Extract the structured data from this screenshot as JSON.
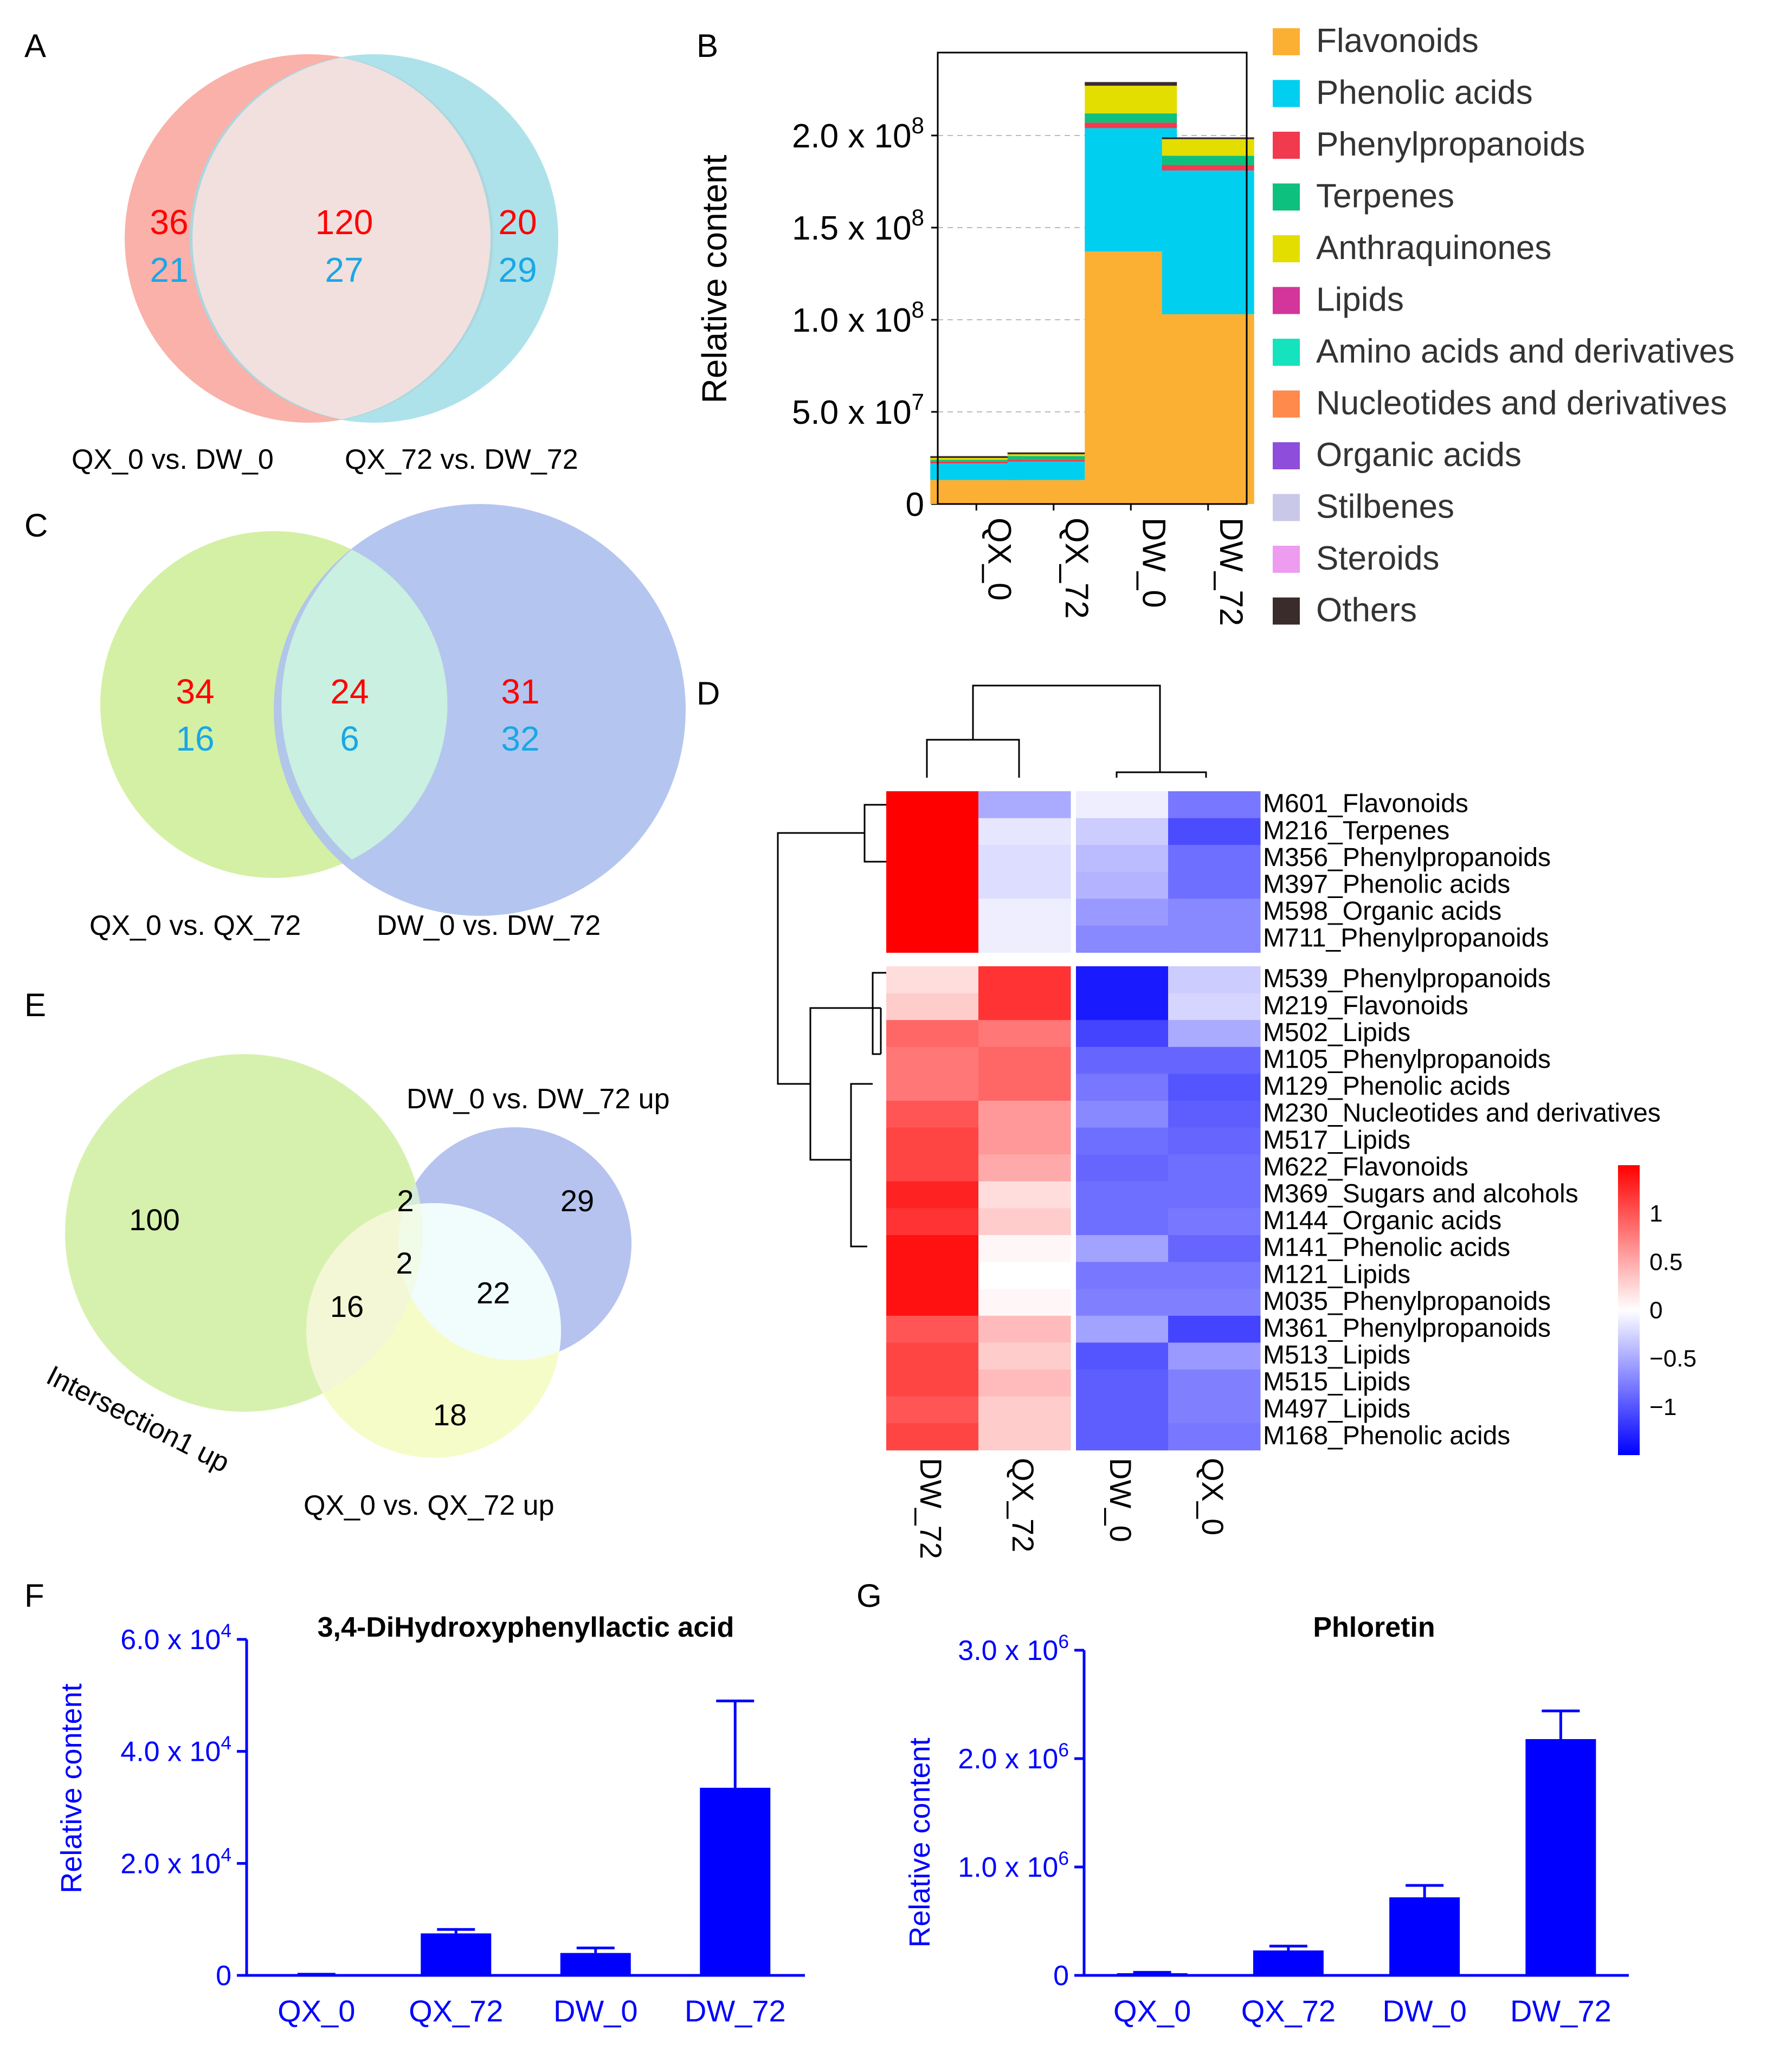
{
  "panels": {
    "A": {
      "letter": "A",
      "left_label": "QX_0 vs. DW_0",
      "right_label": "QX_72 vs. DW_72",
      "left_red": "36",
      "left_blue": "21",
      "mid_red": "120",
      "mid_blue": "27",
      "right_red": "20",
      "right_blue": "29"
    },
    "C": {
      "letter": "C",
      "left_label": "QX_0 vs. QX_72",
      "right_label": "DW_0 vs. DW_72",
      "left_red": "34",
      "left_blue": "16",
      "mid_red": "24",
      "mid_blue": "6",
      "right_red": "31",
      "right_blue": "32"
    },
    "E": {
      "letter": "E",
      "set_intersection": "Intersection1 up",
      "set_dw": "DW_0 vs. DW_72 up",
      "set_qx": "QX_0 vs. QX_72 up",
      "n_green_only": "100",
      "n_green_blue": "2",
      "n_all": "2",
      "n_green_yellow": "16",
      "n_blue_only": "29",
      "n_blue_yellow": "22",
      "n_yellow_only": "18"
    },
    "B": {
      "letter": "B"
    },
    "D": {
      "letter": "D"
    },
    "F": {
      "letter": "F"
    },
    "G": {
      "letter": "G"
    }
  },
  "colors": {
    "red_num": "#ff0000",
    "blue_num": "#1aa7e6",
    "bar_blue": "#0000ff"
  },
  "chart_data": [
    {
      "id": "B",
      "type": "bar",
      "stacked": true,
      "ylabel": "Relative content",
      "categories": [
        "QX_0",
        "QX_72",
        "DW_0",
        "DW_72"
      ],
      "ylim": [
        0,
        245000000
      ],
      "yticks": [
        0,
        50000000,
        100000000,
        150000000,
        200000000
      ],
      "ytick_labels": [
        {
          "m": "0",
          "e": ""
        },
        {
          "m": "5.0 x 10",
          "e": "7"
        },
        {
          "m": "1.0 x 10",
          "e": "8"
        },
        {
          "m": "1.5 x 10",
          "e": "8"
        },
        {
          "m": "2.0 x 10",
          "e": "8"
        }
      ],
      "grid": "dashed horizontal",
      "series": [
        {
          "name": "Flavonoids",
          "color": "#fbb034",
          "values": [
            13000000,
            13000000,
            137000000,
            103000000
          ]
        },
        {
          "name": "Phenolic acids",
          "color": "#00cff0",
          "values": [
            9000000,
            10000000,
            67000000,
            78000000
          ]
        },
        {
          "name": "Phenylpropanoids",
          "color": "#f23a4e",
          "values": [
            1000000,
            1000000,
            3000000,
            3000000
          ]
        },
        {
          "name": "Terpenes",
          "color": "#0ec07d",
          "values": [
            1000000,
            2000000,
            5000000,
            5000000
          ]
        },
        {
          "name": "Anthraquinones",
          "color": "#e3de00",
          "values": [
            1000000,
            1000000,
            15000000,
            9000000
          ]
        },
        {
          "name": "Lipids",
          "color": "#d4359a",
          "values": [
            0,
            0,
            0,
            0
          ]
        },
        {
          "name": "Amino acids and derivatives",
          "color": "#14e3bd",
          "values": [
            0,
            0,
            0,
            0
          ]
        },
        {
          "name": "Nucleotides and derivatives",
          "color": "#ff8a4c",
          "values": [
            0,
            0,
            0,
            0
          ]
        },
        {
          "name": "Organic acids",
          "color": "#8f4ddc",
          "values": [
            0,
            0,
            0,
            0
          ]
        },
        {
          "name": "Stilbenes",
          "color": "#c9c8e8",
          "values": [
            0,
            0,
            0,
            0
          ]
        },
        {
          "name": "Steroids",
          "color": "#ee9cf0",
          "values": [
            0,
            0,
            0,
            0
          ]
        },
        {
          "name": "Others",
          "color": "#3a2c2b",
          "values": [
            1000000,
            1000000,
            2000000,
            1000000
          ]
        }
      ]
    },
    {
      "id": "D",
      "type": "heatmap",
      "columns": [
        "DW_72",
        "QX_72",
        "DW_0",
        "QX_0"
      ],
      "rows": [
        "M601_Flavonoids",
        "M216_Terpenes",
        "M356_Phenylpropanoids",
        "M397_Phenolic acids",
        "M598_Organic acids",
        "M711_Phenylpropanoids",
        "M539_Phenylpropanoids",
        "M219_Flavonoids",
        "M502_Lipids",
        "M105_Phenylpropanoids",
        "M129_Phenolic acids",
        "M230_Nucleotides and derivatives",
        "M517_Lipids",
        "M622_Flavonoids",
        "M369_Sugars and alcohols",
        "M144_Organic acids",
        "M141_Phenolic acids",
        "M121_Lipids",
        "M035_Phenylpropanoids",
        "M361_Phenylpropanoids",
        "M513_Lipids",
        "M515_Lipids",
        "M497_Lipids",
        "M168_Phenolic acids"
      ],
      "values": [
        [
          1.5,
          -0.5,
          -0.1,
          -0.8
        ],
        [
          1.5,
          -0.15,
          -0.3,
          -1.05
        ],
        [
          1.5,
          -0.2,
          -0.4,
          -0.85
        ],
        [
          1.5,
          -0.2,
          -0.45,
          -0.85
        ],
        [
          1.5,
          -0.1,
          -0.6,
          -0.7
        ],
        [
          1.5,
          -0.1,
          -0.7,
          -0.7
        ],
        [
          0.2,
          1.2,
          -1.35,
          -0.3
        ],
        [
          0.3,
          1.2,
          -1.35,
          -0.25
        ],
        [
          0.9,
          0.8,
          -1.1,
          -0.5
        ],
        [
          0.8,
          0.9,
          -0.9,
          -0.9
        ],
        [
          0.8,
          0.9,
          -0.8,
          -1.0
        ],
        [
          1.0,
          0.6,
          -0.7,
          -0.95
        ],
        [
          1.1,
          0.6,
          -0.85,
          -0.9
        ],
        [
          1.1,
          0.5,
          -0.9,
          -0.85
        ],
        [
          1.3,
          0.2,
          -0.85,
          -0.85
        ],
        [
          1.2,
          0.3,
          -0.85,
          -0.8
        ],
        [
          1.4,
          0.05,
          -0.55,
          -0.9
        ],
        [
          1.4,
          0.0,
          -0.8,
          -0.8
        ],
        [
          1.4,
          0.05,
          -0.75,
          -0.75
        ],
        [
          1.0,
          0.4,
          -0.55,
          -1.1
        ],
        [
          1.1,
          0.3,
          -1.0,
          -0.6
        ],
        [
          1.1,
          0.4,
          -0.95,
          -0.75
        ],
        [
          1.0,
          0.3,
          -0.95,
          -0.75
        ],
        [
          1.1,
          0.3,
          -0.95,
          -0.8
        ]
      ],
      "color_scale": {
        "min": -1.5,
        "max": 1.5,
        "low": "#0000ff",
        "mid": "#ffffff",
        "high": "#ff0000",
        "ticks": [
          1,
          0.5,
          0,
          -0.5,
          -1
        ],
        "tick_labels": [
          "1",
          "0.5",
          "0",
          "−0.5",
          "−1"
        ]
      }
    },
    {
      "id": "F",
      "type": "bar",
      "title": "3,4-DiHydroxyphenyllactic acid",
      "ylabel": "Relative content",
      "categories": [
        "QX_0",
        "QX_72",
        "DW_0",
        "DW_72"
      ],
      "values": [
        150,
        7500,
        4000,
        33500
      ],
      "errors": [
        50,
        700,
        900,
        15500
      ],
      "ylim": [
        0,
        60000
      ],
      "yticks": [
        0,
        20000,
        40000,
        60000
      ],
      "ytick_labels": [
        {
          "m": "0",
          "e": ""
        },
        {
          "m": "2.0 x 10",
          "e": "4"
        },
        {
          "m": "4.0 x 10",
          "e": "4"
        },
        {
          "m": "6.0 x 10",
          "e": "4"
        }
      ]
    },
    {
      "id": "G",
      "type": "bar",
      "title": "Phloretin",
      "ylabel": "Relative content",
      "categories": [
        "QX_0",
        "QX_72",
        "DW_0",
        "DW_72"
      ],
      "values": [
        20000,
        230000,
        720000,
        2180000
      ],
      "errors": [
        8000,
        40000,
        110000,
        260000
      ],
      "ylim": [
        0,
        3000000
      ],
      "yticks": [
        0,
        1000000,
        2000000,
        3000000
      ],
      "ytick_labels": [
        {
          "m": "0",
          "e": ""
        },
        {
          "m": "1.0 x 10",
          "e": "6"
        },
        {
          "m": "2.0 x 10",
          "e": "6"
        },
        {
          "m": "3.0 x 10",
          "e": "6"
        }
      ]
    }
  ]
}
